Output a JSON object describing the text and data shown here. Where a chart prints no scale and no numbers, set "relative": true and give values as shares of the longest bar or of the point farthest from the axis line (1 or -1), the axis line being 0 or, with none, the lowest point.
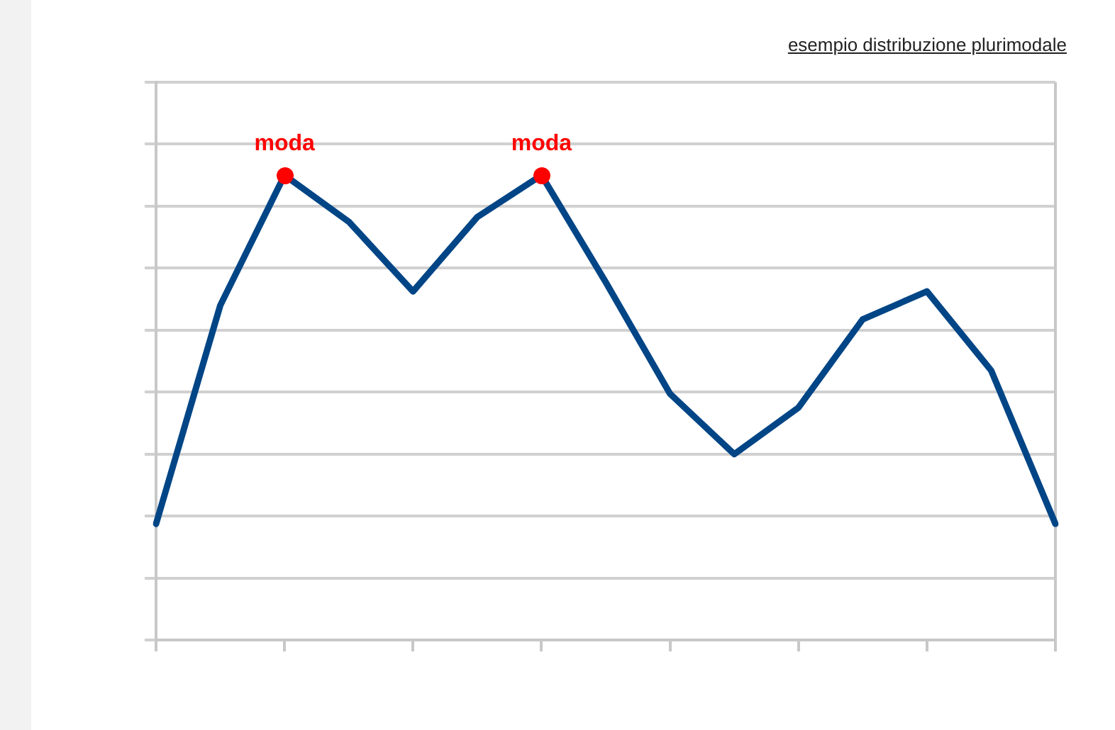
{
  "chart_data": {
    "type": "line",
    "title": "esempio distribuzione plurimodale",
    "relative": true,
    "grid": "y",
    "legend": false,
    "marker": "none",
    "line_style": "solid",
    "categories": [
      null,
      null,
      null,
      null,
      null,
      null,
      null,
      null,
      null,
      null,
      null,
      null,
      null,
      null,
      null
    ],
    "series": [
      {
        "color": "#004586",
        "values": [
          0.25,
          0.72,
          1,
          0.9,
          0.75,
          0.91,
          1,
          0.77,
          0.53,
          0.4,
          0.5,
          0.69,
          0.75,
          0.58,
          0.25
        ]
      }
    ],
    "annotations": [
      {
        "text": "moda",
        "y": 1
      },
      {
        "text": "moda",
        "y": 1
      }
    ]
  }
}
